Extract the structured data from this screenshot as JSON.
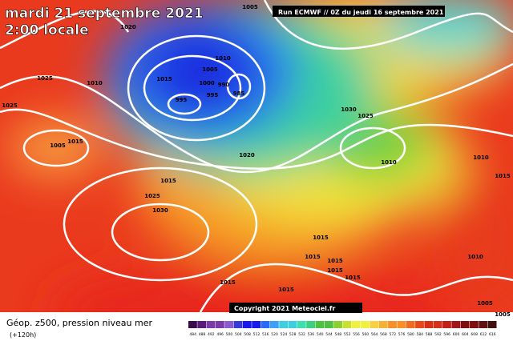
{
  "header": {
    "date": "mardi 21 septembre 2021",
    "time": "2:00 locale",
    "run": "Run ECMWF // 0Z du jeudi 16 septembre 2021"
  },
  "copyright": "Copyright 2021 Meteociel.fr",
  "legend": {
    "title": "Géop. z500, pression niveau mer",
    "lead": "(+120h)",
    "scale": [
      "484",
      "488",
      "492",
      "496",
      "500",
      "504",
      "508",
      "512",
      "516",
      "520",
      "524",
      "528",
      "532",
      "536",
      "540",
      "544",
      "548",
      "552",
      "556",
      "560",
      "564",
      "568",
      "572",
      "576",
      "580",
      "584",
      "588",
      "592",
      "596",
      "600",
      "604",
      "608",
      "612",
      "616"
    ]
  },
  "isobars": [
    "1005",
    "1020",
    "1010",
    "1015",
    "1005",
    "1000",
    "990",
    "995",
    "985",
    "995",
    "1025",
    "1010",
    "1025",
    "1005",
    "1015",
    "1030",
    "1025",
    "1020",
    "1010",
    "1015",
    "1025",
    "1030",
    "1010",
    "1015",
    "1015",
    "1015",
    "1015",
    "1015",
    "1015",
    "1015",
    "1015",
    "1010",
    "1005",
    "1005"
  ]
}
